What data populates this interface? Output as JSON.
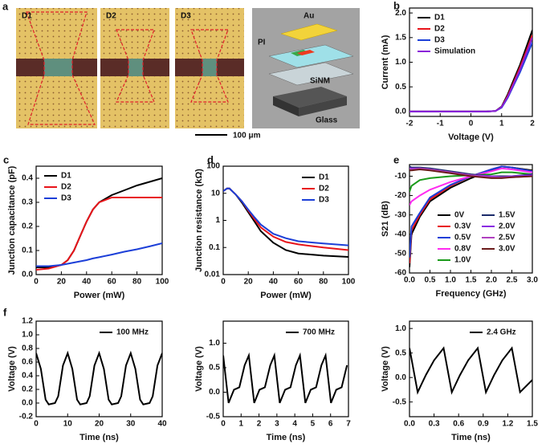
{
  "panel_a": {
    "label": "a",
    "images": [
      "D1",
      "D2",
      "D3"
    ],
    "schematic": [
      "Au",
      "PI",
      "SiNM",
      "Glass"
    ],
    "scale_bar": "100 μm"
  },
  "chart_data": [
    {
      "panel": "b",
      "type": "line",
      "xlabel": "Voltage (V)",
      "ylabel": "Current (mA)",
      "legend": "upper left",
      "x": [
        -2,
        -1.5,
        -1,
        -0.5,
        0,
        0.5,
        0.8,
        1,
        1.2,
        1.4,
        1.6,
        1.8,
        2
      ],
      "series": [
        {
          "name": "D1",
          "color": "#000000",
          "values": [
            0,
            0,
            0,
            0,
            0,
            0,
            0.01,
            0.1,
            0.35,
            0.65,
            0.95,
            1.3,
            1.65
          ]
        },
        {
          "name": "D2",
          "color": "#e8141a",
          "values": [
            0,
            0,
            0,
            0,
            0,
            0,
            0.01,
            0.09,
            0.32,
            0.6,
            0.9,
            1.22,
            1.55
          ]
        },
        {
          "name": "D3",
          "color": "#1c3fd8",
          "values": [
            0,
            0,
            0,
            0,
            0,
            0,
            0.01,
            0.08,
            0.28,
            0.54,
            0.8,
            1.1,
            1.4
          ]
        },
        {
          "name": "Simulation",
          "color": "#8a1fd8",
          "values": [
            0,
            0,
            0,
            0,
            0,
            0,
            0.01,
            0.09,
            0.3,
            0.57,
            0.85,
            1.17,
            1.5
          ]
        }
      ],
      "xlim": [
        -2,
        2
      ],
      "xticks": [
        -2,
        -1,
        0,
        1,
        2
      ],
      "ylim": [
        -0.1,
        2.1
      ],
      "yticks": [
        {
          "value": 0,
          "label": "0.0"
        },
        0.5,
        {
          "value": 1,
          "label": "1.0"
        },
        1.5,
        {
          "value": 2,
          "label": "2.0"
        }
      ]
    },
    {
      "panel": "c",
      "type": "line",
      "xlabel": "Power (mW)",
      "ylabel": "Junction capacitance (pF)",
      "legend": "upper left",
      "x": [
        0,
        10,
        20,
        25,
        30,
        35,
        40,
        45,
        50,
        60,
        70,
        80,
        90,
        100
      ],
      "series": [
        {
          "name": "D1",
          "color": "#000000",
          "values": [
            0.03,
            0.03,
            0.04,
            0.06,
            0.1,
            0.16,
            0.22,
            0.27,
            0.3,
            0.33,
            0.35,
            0.37,
            0.385,
            0.4
          ]
        },
        {
          "name": "D2",
          "color": "#e8141a",
          "values": [
            0.02,
            0.025,
            0.04,
            0.06,
            0.1,
            0.16,
            0.22,
            0.27,
            0.3,
            0.32,
            0.32,
            0.32,
            0.32,
            0.32
          ]
        },
        {
          "name": "D3",
          "color": "#1c3fd8",
          "values": [
            0.035,
            0.035,
            0.04,
            0.045,
            0.05,
            0.055,
            0.06,
            0.067,
            0.072,
            0.083,
            0.095,
            0.105,
            0.117,
            0.13
          ]
        }
      ],
      "xlim": [
        0,
        100
      ],
      "xticks": [
        0,
        20,
        40,
        60,
        80,
        100
      ],
      "ylim": [
        0,
        0.45
      ],
      "yticks": [
        {
          "value": 0,
          "label": "0.0"
        },
        0.1,
        0.2,
        0.3,
        0.4
      ]
    },
    {
      "panel": "d",
      "type": "line",
      "xlabel": "Power (mW)",
      "ylabel": "Junction resistance (kΩ)",
      "legend": "upper right",
      "yscale": "log",
      "x": [
        0,
        3,
        5,
        10,
        15,
        20,
        25,
        30,
        40,
        50,
        60,
        80,
        100
      ],
      "series": [
        {
          "name": "D1",
          "color": "#000000",
          "values": [
            12,
            15,
            15,
            9,
            4.5,
            2,
            0.9,
            0.4,
            0.15,
            0.08,
            0.06,
            0.05,
            0.045
          ]
        },
        {
          "name": "D2",
          "color": "#e8141a",
          "values": [
            12,
            15,
            15,
            9,
            5,
            2.3,
            1.1,
            0.55,
            0.25,
            0.16,
            0.13,
            0.1,
            0.08
          ]
        },
        {
          "name": "D3",
          "color": "#1c3fd8",
          "values": [
            12,
            15,
            15,
            9,
            5,
            2.5,
            1.3,
            0.7,
            0.32,
            0.22,
            0.17,
            0.14,
            0.12
          ]
        }
      ],
      "xlim": [
        0,
        100
      ],
      "xticks": [
        0,
        20,
        40,
        60,
        80,
        100
      ],
      "ylim": [
        0.01,
        100
      ],
      "yticks": [
        0.01,
        0.1,
        1,
        10,
        100
      ]
    },
    {
      "panel": "e",
      "type": "line",
      "xlabel": "Frequency (GHz)",
      "ylabel": "S21 (dB)",
      "legend": "lower center",
      "legend_columns": 2,
      "x": [
        0,
        0.05,
        0.25,
        0.5,
        1,
        1.5,
        2,
        2.25,
        2.5,
        3
      ],
      "series": [
        {
          "name": "0V",
          "color": "#000000",
          "values": [
            -57,
            -40,
            -31,
            -23,
            -16,
            -11,
            -7,
            -5,
            -5.5,
            -7
          ]
        },
        {
          "name": "0.3V",
          "color": "#e8141a",
          "values": [
            -55,
            -38,
            -30,
            -22,
            -15,
            -10,
            -6.5,
            -5,
            -5.5,
            -7.5
          ]
        },
        {
          "name": "0.5V",
          "color": "#1c3fd8",
          "values": [
            -52,
            -36,
            -29,
            -21,
            -14.5,
            -10,
            -6.5,
            -5,
            -5.5,
            -7.5
          ]
        },
        {
          "name": "0.8V",
          "color": "#ff2bf0",
          "values": [
            -25,
            -23,
            -20,
            -17,
            -13,
            -10,
            -7.5,
            -6,
            -6.5,
            -8
          ]
        },
        {
          "name": "1.0V",
          "color": "#1a9a1a",
          "values": [
            -18,
            -15,
            -12,
            -11,
            -10,
            -9.5,
            -9,
            -8,
            -8,
            -9
          ]
        },
        {
          "name": "1.5V",
          "color": "#1a2a6a",
          "values": [
            -5,
            -5.5,
            -5.5,
            -6,
            -7.5,
            -9,
            -10,
            -10,
            -10,
            -9
          ]
        },
        {
          "name": "2.0V",
          "color": "#8a2be2",
          "values": [
            -6,
            -6,
            -6,
            -6.5,
            -8,
            -9.5,
            -10,
            -10.5,
            -10,
            -9.5
          ]
        },
        {
          "name": "2.5V",
          "color": "#b040c0",
          "values": [
            -6,
            -6.5,
            -6,
            -6.5,
            -8,
            -9.5,
            -10.5,
            -10.5,
            -10.5,
            -10
          ]
        },
        {
          "name": "3.0V",
          "color": "#6a1a1a",
          "values": [
            -7,
            -7,
            -6.5,
            -7,
            -8.5,
            -10,
            -11,
            -11,
            -10.5,
            -10
          ]
        }
      ],
      "xlim": [
        0,
        3
      ],
      "xticks": [
        {
          "value": 0,
          "label": "0.0"
        },
        0.5,
        {
          "value": 1,
          "label": "1.0"
        },
        1.5,
        {
          "value": 2,
          "label": "2.0"
        },
        2.5,
        {
          "value": 3,
          "label": "3.0"
        }
      ],
      "ylim": [
        -60,
        -4
      ],
      "yticks": [
        -60,
        -50,
        -40,
        -30,
        -20,
        -10
      ]
    },
    {
      "panel": "f",
      "type": "line",
      "xlabel": "Time (ns)",
      "ylabel": "Voltage (V)",
      "legend": "upper right",
      "x": [
        0,
        1.5,
        3,
        4,
        6,
        7,
        8.5,
        10,
        11.5,
        13,
        14,
        16,
        17,
        18.5,
        20,
        21.5,
        23,
        24,
        26,
        27,
        28.5,
        30,
        31.5,
        33,
        34,
        36,
        37,
        38.5,
        40
      ],
      "series": [
        {
          "name": "100 MHz",
          "color": "#000000",
          "values": [
            0.73,
            0.5,
            0.05,
            -0.02,
            0,
            0.1,
            0.55,
            0.73,
            0.5,
            0.05,
            -0.02,
            0,
            0.1,
            0.55,
            0.73,
            0.5,
            0.05,
            -0.02,
            0,
            0.1,
            0.55,
            0.73,
            0.5,
            0.05,
            -0.02,
            0,
            0.1,
            0.55,
            0.73
          ]
        }
      ],
      "xlim": [
        0,
        40
      ],
      "xticks": [
        0,
        10,
        20,
        30,
        40
      ],
      "ylim": [
        -0.2,
        1.2
      ],
      "yticks": [
        -0.2,
        {
          "value": 0,
          "label": "0.0"
        },
        0.2,
        0.4,
        0.6,
        0.8,
        {
          "value": 1,
          "label": "1.0"
        },
        1.2
      ]
    },
    {
      "type": "line",
      "xlabel": "Time (ns)",
      "ylabel": "Voltage (V)",
      "legend": "upper right",
      "x": [
        0,
        0.3,
        0.6,
        0.9,
        1.2,
        1.43,
        1.73,
        2.03,
        2.33,
        2.63,
        2.86,
        3.16,
        3.46,
        3.76,
        4.06,
        4.29,
        4.59,
        4.89,
        5.19,
        5.49,
        5.72,
        6.02,
        6.32,
        6.62,
        6.92
      ],
      "series": [
        {
          "name": "700 MHz",
          "color": "#000000",
          "values": [
            0.75,
            -0.22,
            0.05,
            0.1,
            0.55,
            0.75,
            -0.22,
            0.05,
            0.1,
            0.55,
            0.75,
            -0.22,
            0.05,
            0.1,
            0.55,
            0.75,
            -0.22,
            0.05,
            0.1,
            0.55,
            0.75,
            -0.22,
            0.05,
            0.1,
            0.55
          ]
        }
      ],
      "xlim": [
        0,
        7
      ],
      "xticks": [
        0,
        1,
        2,
        3,
        4,
        5,
        6,
        7
      ],
      "ylim": [
        -0.5,
        1.45
      ],
      "yticks": [
        -0.5,
        {
          "value": 0,
          "label": "0.0"
        },
        0.5,
        {
          "value": 1,
          "label": "1.0"
        }
      ]
    },
    {
      "type": "line",
      "xlabel": "Time (ns)",
      "ylabel": "Voltage (V)",
      "legend": "upper right",
      "x": [
        0,
        0.1,
        0.2,
        0.3,
        0.417,
        0.517,
        0.617,
        0.717,
        0.833,
        0.933,
        1.033,
        1.133,
        1.25,
        1.35,
        1.5
      ],
      "series": [
        {
          "name": "2.4 GHz",
          "color": "#000000",
          "values": [
            0.6,
            -0.3,
            0.05,
            0.35,
            0.6,
            -0.3,
            0.05,
            0.35,
            0.6,
            -0.3,
            0.05,
            0.35,
            0.6,
            -0.3,
            -0.05
          ]
        }
      ],
      "xlim": [
        0,
        1.5
      ],
      "xticks": [
        {
          "value": 0,
          "label": "0.0"
        },
        0.3,
        0.6,
        0.9,
        1.2,
        1.5
      ],
      "ylim": [
        -0.8,
        1.15
      ],
      "yticks": [
        -0.5,
        {
          "value": 0,
          "label": "0.0"
        },
        0.5,
        {
          "value": 1,
          "label": "1.0"
        }
      ]
    }
  ]
}
